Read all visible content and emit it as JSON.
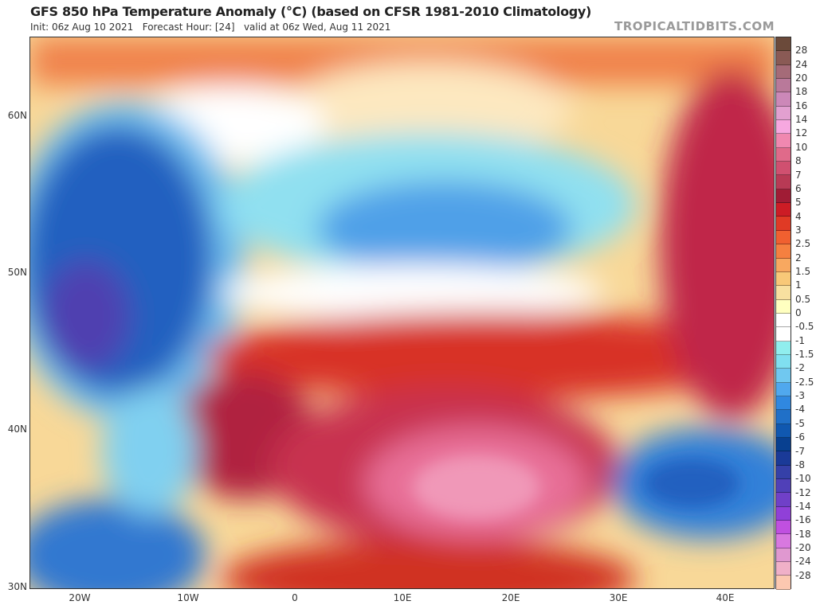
{
  "header": {
    "title": "GFS 850 hPa Temperature Anomaly (°C) (based on CFSR 1981-2010 Climatology)",
    "subtitle": "Init: 06z Aug 10 2021   Forecast Hour: [24]   valid at 06z Wed, Aug 11 2021",
    "watermark": "TROPICALTIDBITS.COM"
  },
  "axes": {
    "lat_labels": [
      "60N",
      "50N",
      "40N",
      "30N"
    ],
    "lon_labels": [
      "20W",
      "10W",
      "0",
      "10E",
      "20E",
      "30E",
      "40E"
    ]
  },
  "colorbar": {
    "labels": [
      "28",
      "24",
      "20",
      "18",
      "16",
      "14",
      "12",
      "10",
      "8",
      "7",
      "6",
      "5",
      "4",
      "3",
      "2.5",
      "2",
      "1.5",
      "1",
      "0.5",
      "0",
      "-0.5",
      "-1",
      "-1.5",
      "-2",
      "-2.5",
      "-3",
      "-4",
      "-5",
      "-6",
      "-7",
      "-8",
      "-10",
      "-12",
      "-14",
      "-16",
      "-18",
      "-20",
      "-24",
      "-28"
    ],
    "colors": [
      "#6b4a3a",
      "#8a5a55",
      "#a56b78",
      "#b9799a",
      "#cc88b8",
      "#e2a0d0",
      "#f7a8e0",
      "#f088b0",
      "#e06a8a",
      "#d05070",
      "#b83a55",
      "#a01c35",
      "#cc1c25",
      "#e03a25",
      "#f06030",
      "#f58040",
      "#f8a860",
      "#f8c878",
      "#f8e0a0",
      "#ffffc0",
      "#ffffff",
      "#ffffff",
      "#90eeee",
      "#80e0f0",
      "#70c8f0",
      "#50a8ee",
      "#3088e0",
      "#2070c8",
      "#1058b0",
      "#084090",
      "#1a3a98",
      "#3540a8",
      "#5040b8",
      "#7040c8",
      "#9040d8",
      "#c050e0",
      "#d878e0",
      "#e098d0",
      "#f0b0c8",
      "#fcc8b0"
    ]
  }
}
